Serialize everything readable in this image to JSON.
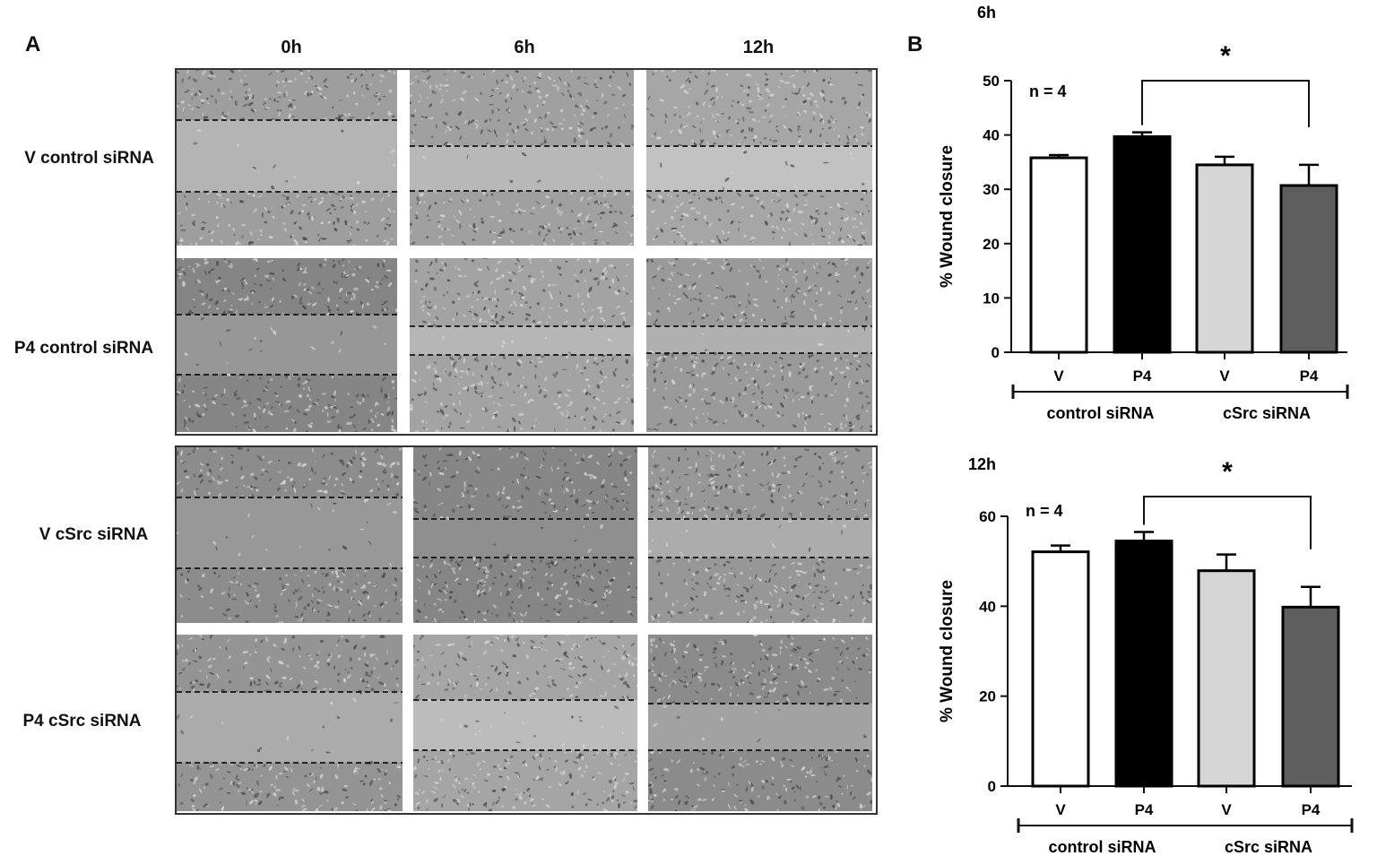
{
  "panel_a": {
    "letter": "A",
    "columns": [
      "0h",
      "6h",
      "12h"
    ],
    "rows": [
      "V control siRNA",
      "P4 control siRNA",
      "V cSrc siRNA",
      "P4 cSrc siRNA"
    ]
  },
  "panel_b": {
    "letter": "B"
  },
  "colors": {
    "V_control": "#ffffff",
    "P4_control": "#000000",
    "V_cSrc": "#d6d6d6",
    "P4_cSrc": "#5e5e5e"
  },
  "chart_data": [
    {
      "type": "bar",
      "title": "6h",
      "ylabel": "% Wound closure",
      "ylim": [
        0,
        50
      ],
      "yticks": [
        0,
        10,
        20,
        30,
        40,
        50
      ],
      "categories": [
        "V",
        "P4",
        "V",
        "P4"
      ],
      "values": [
        35.8,
        39.7,
        34.5,
        30.7
      ],
      "errors": [
        0.5,
        0.8,
        1.5,
        3.8
      ],
      "group_labels": [
        "control siRNA",
        "cSrc siRNA"
      ],
      "annotation": "n = 4",
      "significance": {
        "from": 1,
        "to": 3,
        "label": "*"
      }
    },
    {
      "type": "bar",
      "title": "12h",
      "ylabel": "% Wound closure",
      "ylim": [
        0,
        60
      ],
      "yticks": [
        0,
        20,
        40,
        60
      ],
      "categories": [
        "V",
        "P4",
        "V",
        "P4"
      ],
      "values": [
        52.1,
        54.5,
        47.9,
        39.8
      ],
      "errors": [
        1.4,
        2.0,
        3.6,
        4.5
      ],
      "group_labels": [
        "control siRNA",
        "cSrc siRNA"
      ],
      "annotation": "n = 4",
      "significance": {
        "from": 1,
        "to": 3,
        "label": "*"
      }
    }
  ]
}
